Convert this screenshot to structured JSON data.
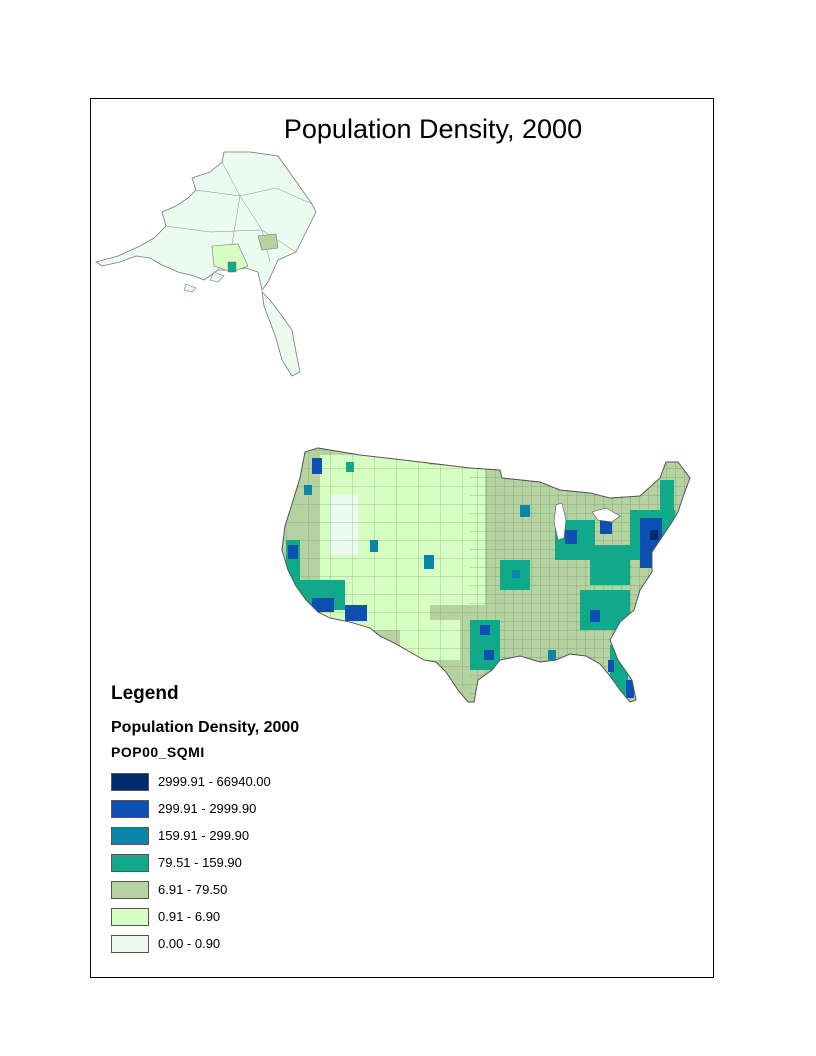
{
  "map": {
    "title": "Population Density, 2000",
    "colors": {
      "class1": "#002b6e",
      "class2": "#0d4fb3",
      "class3": "#0a86a8",
      "class4": "#10a98a",
      "class5": "#b5d3a0",
      "class6": "#d6fdc2",
      "class7": "#ecfbf0"
    }
  },
  "legend": {
    "heading": "Legend",
    "layer": "Population Density, 2000",
    "field": "POP00_SQMI",
    "classes": [
      {
        "label": "2999.91 - 66940.00",
        "color": "#002b6e"
      },
      {
        "label": "299.91 - 2999.90",
        "color": "#0d4fb3"
      },
      {
        "label": "159.91 - 299.90",
        "color": "#0a86a8"
      },
      {
        "label": "79.51 - 159.90",
        "color": "#10a98a"
      },
      {
        "label": "6.91 - 79.50",
        "color": "#b5d3a0"
      },
      {
        "label": "0.91 - 6.90",
        "color": "#d6fdc2"
      },
      {
        "label": "0.00 - 0.90",
        "color": "#ecfbf0"
      }
    ]
  }
}
